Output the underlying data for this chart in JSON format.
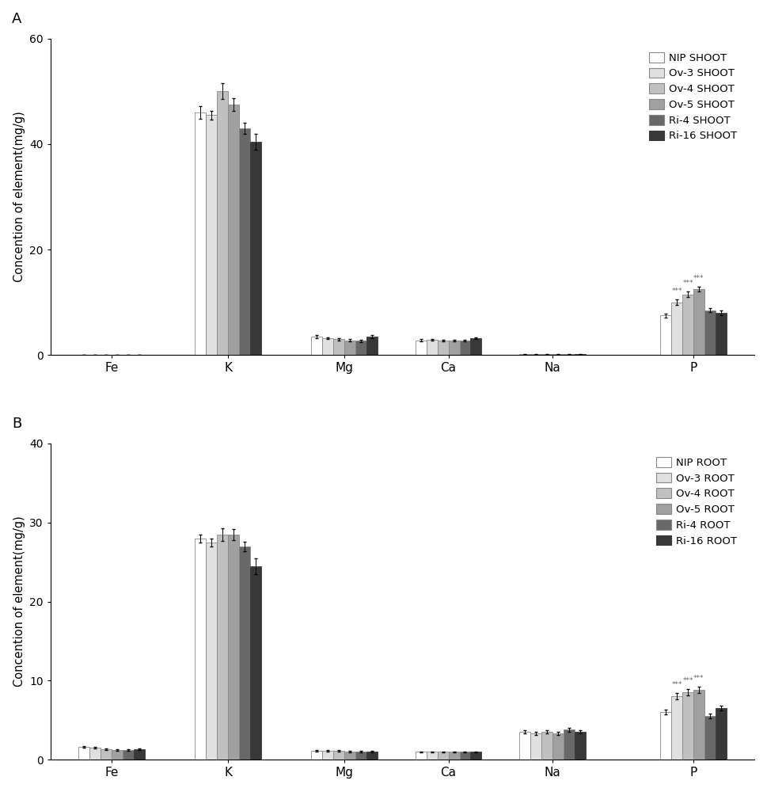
{
  "panel_A": {
    "title": "A",
    "ylabel": "Concention of element(mg/g)",
    "ylim": [
      0,
      60
    ],
    "yticks": [
      0,
      20,
      40,
      60
    ],
    "categories": [
      "Fe",
      "K",
      "Mg",
      "Ca",
      "Na",
      "P"
    ],
    "series": [
      {
        "label": "NIP SHOOT",
        "color": "#ffffff",
        "edgecolor": "#888888",
        "values": [
          0.05,
          46.0,
          3.5,
          2.8,
          0.15,
          7.5
        ],
        "errors": [
          0.02,
          1.2,
          0.3,
          0.2,
          0.05,
          0.4
        ]
      },
      {
        "label": "Ov-3 SHOOT",
        "color": "#e0e0e0",
        "edgecolor": "#888888",
        "values": [
          0.05,
          45.5,
          3.2,
          2.9,
          0.12,
          10.0
        ],
        "errors": [
          0.02,
          0.8,
          0.2,
          0.2,
          0.04,
          0.5
        ]
      },
      {
        "label": "Ov-4 SHOOT",
        "color": "#c0c0c0",
        "edgecolor": "#888888",
        "values": [
          0.05,
          50.0,
          3.0,
          2.8,
          0.12,
          11.5
        ],
        "errors": [
          0.02,
          1.5,
          0.2,
          0.15,
          0.04,
          0.5
        ]
      },
      {
        "label": "Ov-5 SHOOT",
        "color": "#a0a0a0",
        "edgecolor": "#888888",
        "values": [
          0.05,
          47.5,
          2.8,
          2.8,
          0.12,
          12.5
        ],
        "errors": [
          0.02,
          1.2,
          0.2,
          0.15,
          0.04,
          0.5
        ]
      },
      {
        "label": "Ri-4 SHOOT",
        "color": "#686868",
        "edgecolor": "#888888",
        "values": [
          0.05,
          43.0,
          2.7,
          2.7,
          0.12,
          8.5
        ],
        "errors": [
          0.02,
          1.0,
          0.2,
          0.15,
          0.04,
          0.4
        ]
      },
      {
        "label": "Ri-16 SHOOT",
        "color": "#383838",
        "edgecolor": "#383838",
        "values": [
          0.05,
          40.5,
          3.5,
          3.2,
          0.12,
          8.0
        ],
        "errors": [
          0.02,
          1.5,
          0.3,
          0.2,
          0.04,
          0.4
        ]
      }
    ],
    "star_series_indices": [
      1,
      2,
      3
    ],
    "star_category_idx": 5
  },
  "panel_B": {
    "title": "B",
    "ylabel": "Concention of element(mg/g)",
    "ylim": [
      0,
      40
    ],
    "yticks": [
      0,
      10,
      20,
      30,
      40
    ],
    "categories": [
      "Fe",
      "K",
      "Mg",
      "Ca",
      "Na",
      "P"
    ],
    "series": [
      {
        "label": "NIP ROOT",
        "color": "#ffffff",
        "edgecolor": "#888888",
        "values": [
          1.6,
          28.0,
          1.1,
          1.0,
          3.5,
          6.0
        ],
        "errors": [
          0.1,
          0.5,
          0.1,
          0.05,
          0.2,
          0.3
        ]
      },
      {
        "label": "Ov-3 ROOT",
        "color": "#e0e0e0",
        "edgecolor": "#888888",
        "values": [
          1.5,
          27.5,
          1.1,
          1.0,
          3.3,
          8.0
        ],
        "errors": [
          0.1,
          0.5,
          0.1,
          0.05,
          0.2,
          0.4
        ]
      },
      {
        "label": "Ov-4 ROOT",
        "color": "#c0c0c0",
        "edgecolor": "#888888",
        "values": [
          1.3,
          28.5,
          1.1,
          1.0,
          3.5,
          8.5
        ],
        "errors": [
          0.1,
          0.8,
          0.1,
          0.05,
          0.2,
          0.4
        ]
      },
      {
        "label": "Ov-5 ROOT",
        "color": "#a0a0a0",
        "edgecolor": "#888888",
        "values": [
          1.2,
          28.5,
          1.0,
          1.0,
          3.3,
          8.8
        ],
        "errors": [
          0.1,
          0.7,
          0.1,
          0.05,
          0.2,
          0.4
        ]
      },
      {
        "label": "Ri-4 ROOT",
        "color": "#686868",
        "edgecolor": "#888888",
        "values": [
          1.2,
          27.0,
          1.0,
          1.0,
          3.8,
          5.5
        ],
        "errors": [
          0.1,
          0.6,
          0.1,
          0.05,
          0.25,
          0.3
        ]
      },
      {
        "label": "Ri-16 ROOT",
        "color": "#383838",
        "edgecolor": "#383838",
        "values": [
          1.3,
          24.5,
          1.0,
          1.0,
          3.5,
          6.5
        ],
        "errors": [
          0.1,
          1.0,
          0.1,
          0.05,
          0.2,
          0.3
        ]
      }
    ],
    "star_series_indices": [
      1,
      2,
      3
    ],
    "star_category_idx": 5
  },
  "bar_width": 0.09,
  "group_positions": [
    0.35,
    1.3,
    2.25,
    3.1,
    3.95,
    5.1
  ]
}
